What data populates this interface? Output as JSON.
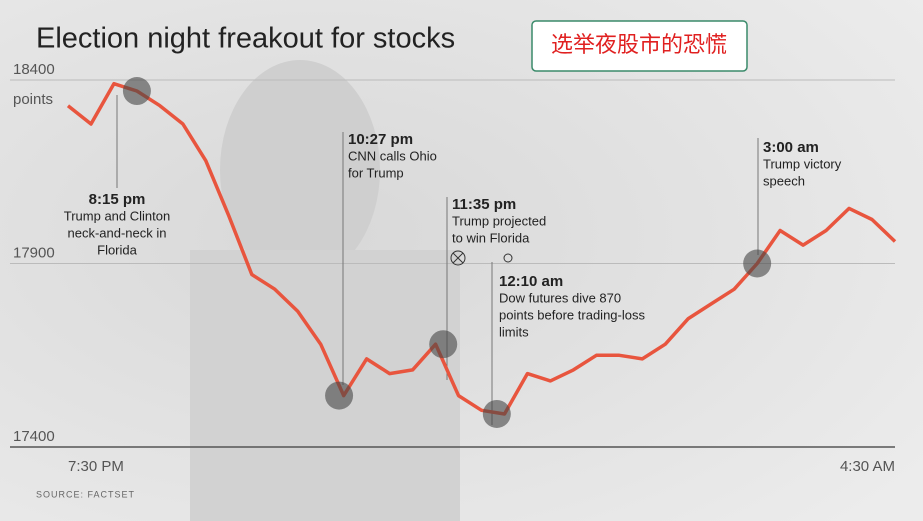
{
  "chart_data": {
    "type": "line",
    "title": "Election night freakout for stocks",
    "annotation": "选举夜股市的恐慌",
    "y_label": "points",
    "source": "SOURCE: FACTSET",
    "categories": [
      "7:30 PM",
      null,
      null,
      null,
      null,
      null,
      null,
      null,
      null,
      null,
      null,
      null,
      null,
      null,
      null,
      null,
      null,
      null,
      null,
      null,
      null,
      null,
      null,
      null,
      null,
      null,
      null,
      null,
      null,
      null,
      null,
      null,
      null,
      null,
      null,
      null,
      "4:30 AM"
    ],
    "series": [
      {
        "name": "Dow futures",
        "color": "#e8553e",
        "values": [
          18330,
          18280,
          18390,
          18370,
          18330,
          18280,
          18180,
          18030,
          17870,
          17830,
          17770,
          17680,
          17540,
          17640,
          17600,
          17610,
          17680,
          17540,
          17500,
          17490,
          17600,
          17580,
          17610,
          17650,
          17650,
          17640,
          17680,
          17750,
          17790,
          17830,
          17900,
          17990,
          17950,
          17990,
          18050,
          18020,
          17960
        ]
      }
    ],
    "ylim": [
      17400,
      18400
    ],
    "yticks": [
      17400,
      17900,
      18400
    ],
    "grid": true,
    "events": [
      {
        "time": "8:15 pm",
        "lines": [
          "Trump and Clinton",
          "neck-and-neck in",
          "Florida"
        ]
      },
      {
        "time": "10:27 pm",
        "lines": [
          "CNN calls Ohio",
          "for Trump"
        ]
      },
      {
        "time": "11:35 pm",
        "lines": [
          "Trump projected",
          "to win Florida"
        ]
      },
      {
        "time": "12:10 am",
        "lines": [
          "Dow futures dive 870",
          "points before trading-loss",
          "limits"
        ]
      },
      {
        "time": "3:00 am",
        "lines": [
          "Trump victory",
          "speech"
        ]
      }
    ]
  }
}
